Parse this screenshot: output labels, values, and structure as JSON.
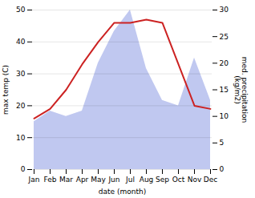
{
  "chart_data": {
    "type": "line",
    "categories": [
      "Jan",
      "Feb",
      "Mar",
      "Apr",
      "May",
      "Jun",
      "Jul",
      "Aug",
      "Sep",
      "Oct",
      "Nov",
      "Dec"
    ],
    "xlabel": "date (month)",
    "ylabel": "max temp (C)",
    "y2label": "med. precipitation\n(kg/m2)",
    "ylim": [
      0,
      50
    ],
    "yticks": [
      0,
      10,
      20,
      30,
      40,
      50
    ],
    "y2lim": [
      0,
      30
    ],
    "y2ticks": [
      0,
      5,
      10,
      15,
      20,
      25,
      30
    ],
    "grid": true,
    "series": [
      {
        "type": "area",
        "axis": "y2",
        "color": "#c0c8f0",
        "values": [
          9,
          11,
          10,
          11,
          20,
          26,
          30,
          19,
          13,
          12,
          21,
          13
        ]
      },
      {
        "type": "line",
        "color": "#cc2222",
        "values": [
          16,
          19,
          25,
          33,
          40,
          46,
          46,
          47,
          46,
          33,
          20,
          19
        ]
      }
    ]
  }
}
